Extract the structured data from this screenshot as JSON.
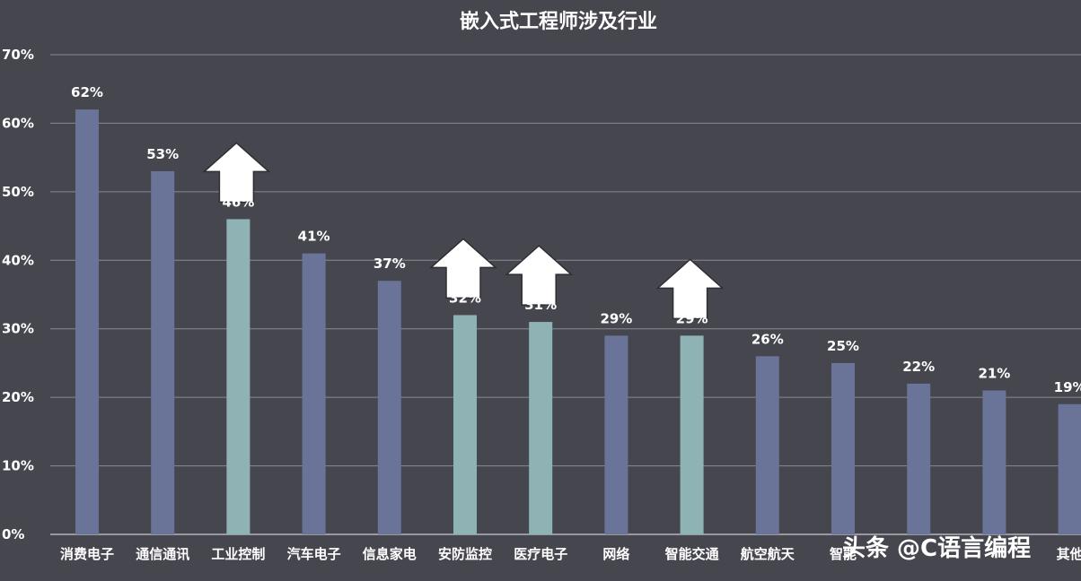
{
  "chart_data": {
    "type": "bar",
    "title": "嵌入式工程师涉及行业",
    "xlabel": "",
    "ylabel": "",
    "ylim": [
      0,
      70
    ],
    "yticks": [
      "0%",
      "10%",
      "20%",
      "30%",
      "40%",
      "50%",
      "60%",
      "70%"
    ],
    "grid": true,
    "categories": [
      "消费电子",
      "通信通讯",
      "工业控制",
      "汽车电子",
      "信息家电",
      "安防监控",
      "医疗电子",
      "网络",
      "智能交通",
      "航空航天",
      "智能",
      "",
      "",
      "其他"
    ],
    "values": [
      62,
      53,
      46,
      41,
      37,
      32,
      31,
      29,
      29,
      26,
      25,
      22,
      21,
      19
    ],
    "value_labels": [
      "62%",
      "53%",
      "46%",
      "41%",
      "37%",
      "32%",
      "31%",
      "29%",
      "29%",
      "26%",
      "25%",
      "22%",
      "21%",
      "19%"
    ],
    "highlighted": [
      "工业控制",
      "安防监控",
      "医疗电子",
      "智能交通"
    ],
    "arrow_annotations": [
      "工业控制",
      "安防监控",
      "医疗电子",
      "智能交通"
    ]
  },
  "colors": {
    "background": "#46464f",
    "bar": "#6a7499",
    "bar_highlight": "#8fb3b5",
    "grid": "#8a8a94",
    "text": "#ffffff"
  },
  "watermark": "头条 @C语言编程"
}
